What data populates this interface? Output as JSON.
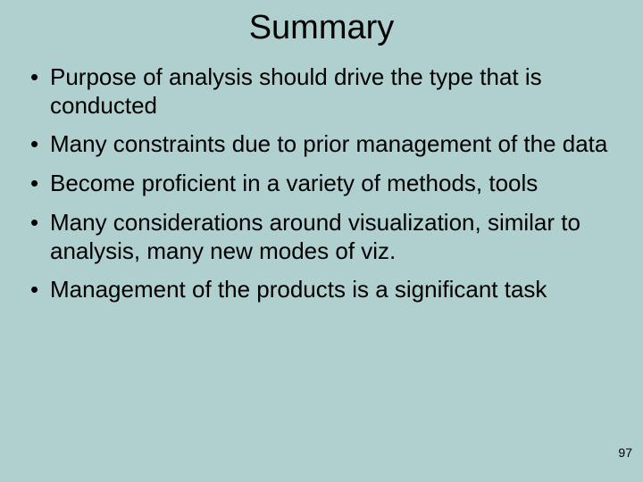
{
  "slide": {
    "title": "Summary",
    "bullets": [
      "Purpose of analysis should drive the type that is conducted",
      "Many constraints due to prior management of the data",
      "Become proficient in a variety of methods, tools",
      "Many considerations around visualization, similar to analysis, many new modes of viz.",
      "Management of the products is a significant task"
    ],
    "page_number": "97",
    "background_color": "#b0cfcf",
    "text_color": "#000000",
    "title_fontsize": 38,
    "bullet_fontsize": 26,
    "page_number_fontsize": 14
  }
}
